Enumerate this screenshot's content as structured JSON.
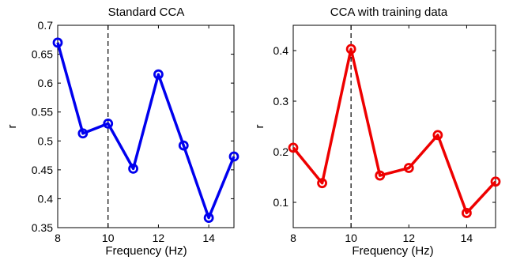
{
  "chart_data": [
    {
      "type": "line",
      "title": "Standard CCA",
      "xlabel": "Frequency (Hz)",
      "ylabel": "r",
      "xlim": [
        8,
        15
      ],
      "ylim": [
        0.35,
        0.7
      ],
      "xticks": [
        "8",
        "10",
        "12",
        "14"
      ],
      "yticks": [
        "0.35",
        "0.4",
        "0.45",
        "0.5",
        "0.55",
        "0.6",
        "0.65",
        "0.7"
      ],
      "x": [
        8,
        9,
        10,
        11,
        12,
        13,
        14,
        15
      ],
      "values": [
        0.67,
        0.513,
        0.53,
        0.452,
        0.615,
        0.492,
        0.367,
        0.473
      ],
      "color": "#0000ee",
      "marker": "circle",
      "reference_line_x": 10,
      "grid": false
    },
    {
      "type": "line",
      "title": "CCA with training data",
      "xlabel": "Frequency (Hz)",
      "ylabel": "r",
      "xlim": [
        8,
        15
      ],
      "ylim": [
        0.05,
        0.45
      ],
      "xticks": [
        "8",
        "10",
        "12",
        "14"
      ],
      "yticks": [
        "0.1",
        "0.2",
        "0.3",
        "0.4"
      ],
      "x": [
        8,
        9,
        10,
        11,
        12,
        13,
        14,
        15
      ],
      "values": [
        0.208,
        0.138,
        0.403,
        0.153,
        0.168,
        0.233,
        0.079,
        0.141
      ],
      "color": "#ee0000",
      "marker": "circle",
      "reference_line_x": 10,
      "grid": false
    }
  ]
}
